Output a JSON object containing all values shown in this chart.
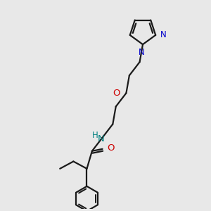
{
  "background_color": "#e8e8e8",
  "bond_color": "#1a1a1a",
  "nitrogen_color": "#0000cc",
  "oxygen_color": "#cc0000",
  "nh_color": "#008080",
  "figsize": [
    3.0,
    3.0
  ],
  "dpi": 100,
  "xlim": [
    0,
    10
  ],
  "ylim": [
    0,
    10
  ]
}
